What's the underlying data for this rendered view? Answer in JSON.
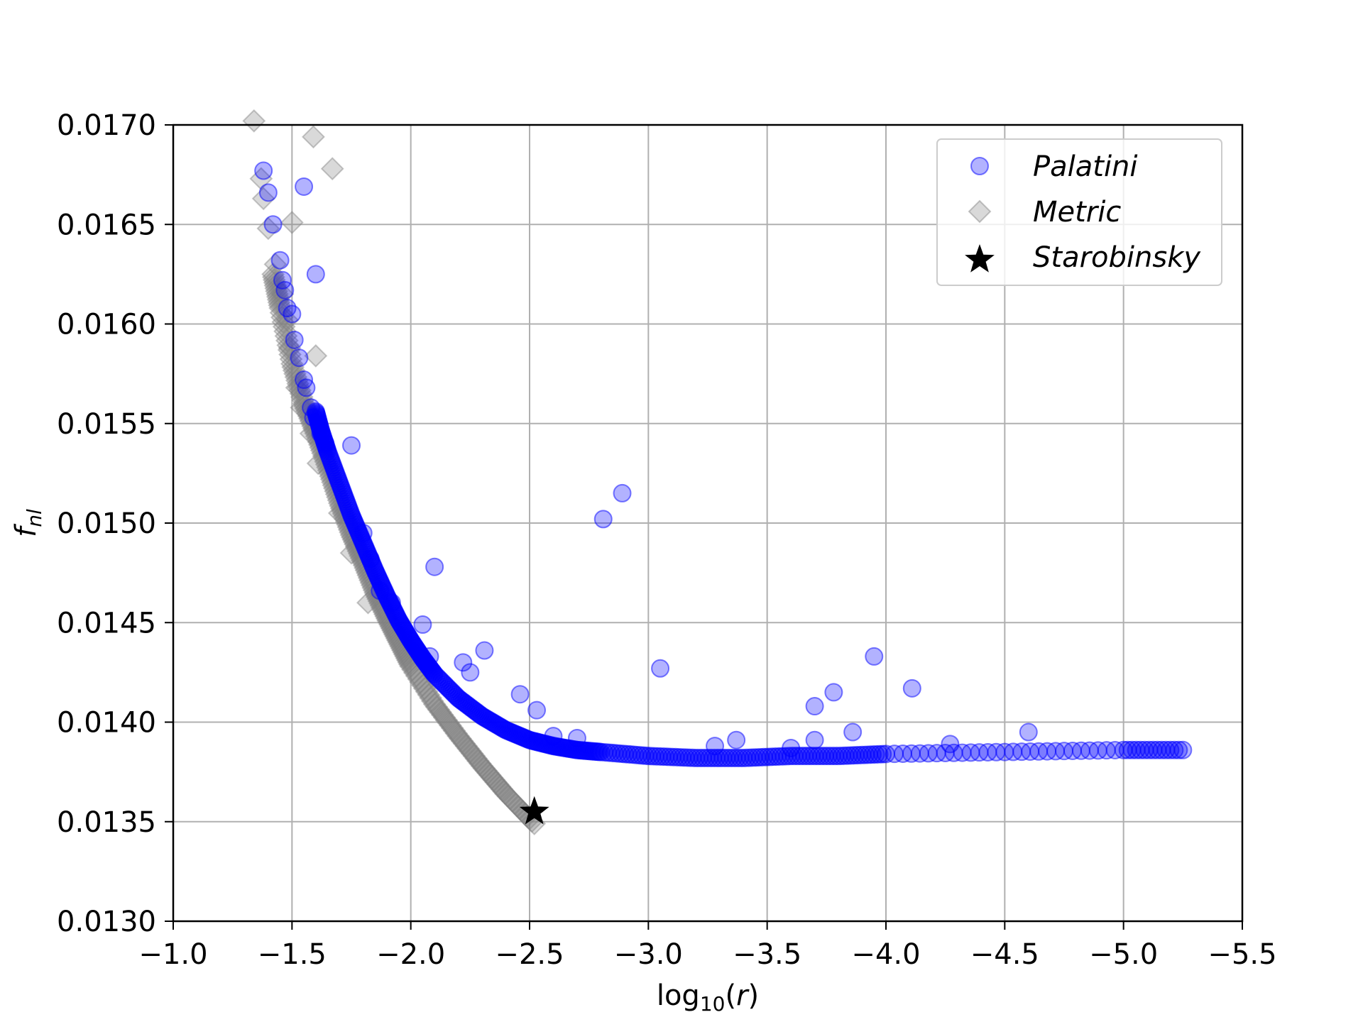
{
  "chart_data": {
    "type": "scatter",
    "title": "",
    "xlabel": "log₁₀(r)",
    "xlabel_parts": [
      "log",
      "10",
      "(",
      "r",
      ")"
    ],
    "ylabel": "f_nl",
    "ylabel_parts": [
      "f",
      "nl"
    ],
    "xlim": [
      -1.0,
      -5.5
    ],
    "ylim": [
      0.013,
      0.017
    ],
    "x_ticks": [
      -1.0,
      -1.5,
      -2.0,
      -2.5,
      -3.0,
      -3.5,
      -4.0,
      -4.5,
      -5.0,
      -5.5
    ],
    "x_tick_labels": [
      "−1.0",
      "−1.5",
      "−2.0",
      "−2.5",
      "−3.0",
      "−3.5",
      "−4.0",
      "−4.5",
      "−5.0",
      "−5.5"
    ],
    "y_ticks": [
      0.013,
      0.0135,
      0.014,
      0.0145,
      0.015,
      0.0155,
      0.016,
      0.0165,
      0.017
    ],
    "y_tick_labels": [
      "0.0130",
      "0.0135",
      "0.0140",
      "0.0145",
      "0.0150",
      "0.0155",
      "0.0160",
      "0.0165",
      "0.0170"
    ],
    "grid": true,
    "legend_position": "top-right",
    "series": [
      {
        "name": "Palatini",
        "marker": "circle",
        "color": "#0000ff",
        "alpha": 0.3,
        "curve": [
          [
            -1.6,
            0.01556
          ],
          [
            -1.62,
            0.01547
          ],
          [
            -1.65,
            0.01536
          ],
          [
            -1.7,
            0.0152
          ],
          [
            -1.75,
            0.01504
          ],
          [
            -1.8,
            0.0149
          ],
          [
            -1.85,
            0.01476
          ],
          [
            -1.9,
            0.01463
          ],
          [
            -1.95,
            0.01451
          ],
          [
            -2.0,
            0.01441
          ],
          [
            -2.05,
            0.01432
          ],
          [
            -2.1,
            0.01424
          ],
          [
            -2.2,
            0.01412
          ],
          [
            -2.3,
            0.01403
          ],
          [
            -2.4,
            0.01396
          ],
          [
            -2.5,
            0.01391
          ],
          [
            -2.6,
            0.01388
          ],
          [
            -2.7,
            0.01386
          ],
          [
            -2.8,
            0.01385
          ],
          [
            -3.0,
            0.01383
          ],
          [
            -3.2,
            0.01382
          ],
          [
            -3.4,
            0.01382
          ],
          [
            -3.6,
            0.01383
          ],
          [
            -3.8,
            0.01383
          ],
          [
            -4.0,
            0.01384
          ],
          [
            -4.5,
            0.01385
          ],
          [
            -5.0,
            0.01386
          ],
          [
            -5.25,
            0.01386
          ]
        ],
        "scattered_points": [
          [
            -1.38,
            0.01677
          ],
          [
            -1.4,
            0.01666
          ],
          [
            -1.42,
            0.0165
          ],
          [
            -1.45,
            0.01632
          ],
          [
            -1.46,
            0.01622
          ],
          [
            -1.47,
            0.01617
          ],
          [
            -1.48,
            0.01608
          ],
          [
            -1.5,
            0.01605
          ],
          [
            -1.51,
            0.01592
          ],
          [
            -1.53,
            0.01583
          ],
          [
            -1.55,
            0.01572
          ],
          [
            -1.56,
            0.01568
          ],
          [
            -1.58,
            0.01558
          ],
          [
            -1.59,
            0.01553
          ],
          [
            -1.62,
            0.01545
          ],
          [
            -1.64,
            0.0154
          ],
          [
            -1.55,
            0.01669
          ],
          [
            -1.6,
            0.01625
          ],
          [
            -1.75,
            0.01539
          ],
          [
            -1.8,
            0.01495
          ],
          [
            -1.83,
            0.01482
          ],
          [
            -1.87,
            0.01466
          ],
          [
            -1.92,
            0.0146
          ],
          [
            -2.1,
            0.01478
          ],
          [
            -2.05,
            0.01449
          ],
          [
            -2.08,
            0.01433
          ],
          [
            -2.22,
            0.0143
          ],
          [
            -2.25,
            0.01425
          ],
          [
            -2.31,
            0.01436
          ],
          [
            -2.46,
            0.01414
          ],
          [
            -2.53,
            0.01406
          ],
          [
            -2.81,
            0.01502
          ],
          [
            -2.89,
            0.01515
          ],
          [
            -3.05,
            0.01427
          ],
          [
            -2.6,
            0.01393
          ],
          [
            -2.7,
            0.01392
          ],
          [
            -3.28,
            0.01388
          ],
          [
            -3.37,
            0.01391
          ],
          [
            -3.7,
            0.01408
          ],
          [
            -3.7,
            0.01391
          ],
          [
            -3.78,
            0.01415
          ],
          [
            -3.86,
            0.01395
          ],
          [
            -3.95,
            0.01433
          ],
          [
            -4.11,
            0.01417
          ],
          [
            -4.27,
            0.01389
          ],
          [
            -4.6,
            0.01395
          ],
          [
            -3.6,
            0.01387
          ]
        ]
      },
      {
        "name": "Metric",
        "marker": "diamond",
        "color": "#808080",
        "alpha": 0.3,
        "curve": [
          [
            -1.42,
            0.01625
          ],
          [
            -1.45,
            0.01608
          ],
          [
            -1.5,
            0.0158
          ],
          [
            -1.55,
            0.0156
          ],
          [
            -1.6,
            0.01545
          ],
          [
            -1.65,
            0.01528
          ],
          [
            -1.7,
            0.0151
          ],
          [
            -1.75,
            0.01494
          ],
          [
            -1.8,
            0.0148
          ],
          [
            -1.85,
            0.01465
          ],
          [
            -1.9,
            0.01452
          ],
          [
            -1.95,
            0.0144
          ],
          [
            -2.0,
            0.01428
          ],
          [
            -2.1,
            0.01409
          ],
          [
            -2.2,
            0.01393
          ],
          [
            -2.3,
            0.01378
          ],
          [
            -2.4,
            0.01364
          ],
          [
            -2.52,
            0.01349
          ]
        ],
        "scattered_points": [
          [
            -1.34,
            0.01702
          ],
          [
            -1.59,
            0.01694
          ],
          [
            -1.67,
            0.01678
          ],
          [
            -1.37,
            0.01673
          ],
          [
            -1.38,
            0.01663
          ],
          [
            -1.4,
            0.01648
          ],
          [
            -1.5,
            0.01651
          ],
          [
            -1.43,
            0.0163
          ],
          [
            -1.46,
            0.01615
          ],
          [
            -1.48,
            0.01602
          ],
          [
            -1.6,
            0.01584
          ],
          [
            -1.49,
            0.01588
          ],
          [
            -1.52,
            0.01568
          ],
          [
            -1.54,
            0.01558
          ],
          [
            -1.58,
            0.01545
          ],
          [
            -1.61,
            0.0153
          ],
          [
            -1.7,
            0.01505
          ],
          [
            -1.75,
            0.01485
          ],
          [
            -1.82,
            0.0146
          ]
        ]
      },
      {
        "name": "Starobinsky",
        "marker": "star",
        "color": "#000000",
        "points": [
          [
            -2.52,
            0.01355
          ]
        ]
      }
    ]
  }
}
